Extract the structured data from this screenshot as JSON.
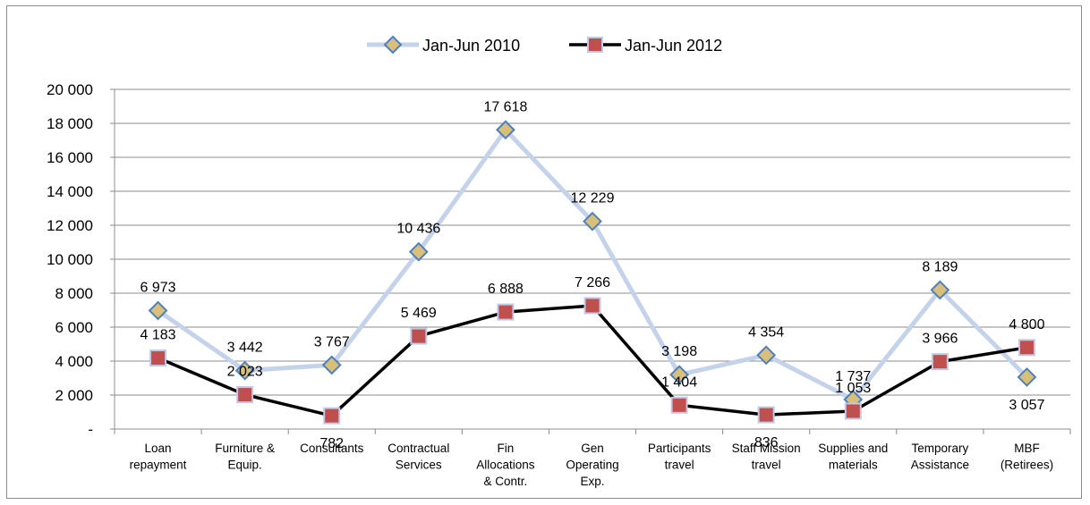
{
  "chart_data": {
    "type": "line",
    "title": "",
    "xlabel": "",
    "ylabel": "",
    "ylim": [
      0,
      20000
    ],
    "yticks": [
      "-",
      "2 000",
      "4 000",
      "6 000",
      "8 000",
      "10 000",
      "12 000",
      "14 000",
      "16 000",
      "18 000",
      "20 000"
    ],
    "grid": true,
    "legend_position": "top-center",
    "categories": [
      [
        "Loan",
        "repayment"
      ],
      [
        "Furniture &",
        "Equip."
      ],
      [
        "Consultants"
      ],
      [
        "Contractual",
        "Services"
      ],
      [
        "Fin",
        "Allocations",
        "& Contr."
      ],
      [
        "Gen",
        "Operating",
        "Exp."
      ],
      [
        "Participants",
        "travel"
      ],
      [
        "Staff Mission",
        "travel"
      ],
      [
        "Supplies and",
        "materials"
      ],
      [
        "Temporary",
        "Assistance"
      ],
      [
        "MBF",
        "(Retirees)"
      ]
    ],
    "series": [
      {
        "name": "Jan-Jun 2010",
        "values": [
          6973,
          3442,
          3767,
          10436,
          17618,
          12229,
          3198,
          4354,
          1737,
          8189,
          3057
        ],
        "labels": [
          "6 973",
          "3 442",
          "3 767",
          "10 436",
          "17 618",
          "12 229",
          "3 198",
          "4 354",
          "1 737",
          "8 189",
          "3 057"
        ],
        "line_color": "#c5d3ea",
        "marker": "diamond",
        "marker_fill": "#d8c07a",
        "marker_stroke": "#4f7fbf"
      },
      {
        "name": "Jan-Jun 2012",
        "values": [
          4183,
          2023,
          782,
          5469,
          6888,
          7266,
          1404,
          836,
          1053,
          3966,
          4800
        ],
        "labels": [
          "4 183",
          "2 023",
          "782",
          "5 469",
          "6 888",
          "7 266",
          "1 404",
          "836",
          "1 053",
          "3 966",
          "4 800"
        ],
        "line_color": "#000000",
        "marker": "square",
        "marker_fill": "#c0504d",
        "marker_stroke": "#c3c8e6"
      }
    ]
  }
}
